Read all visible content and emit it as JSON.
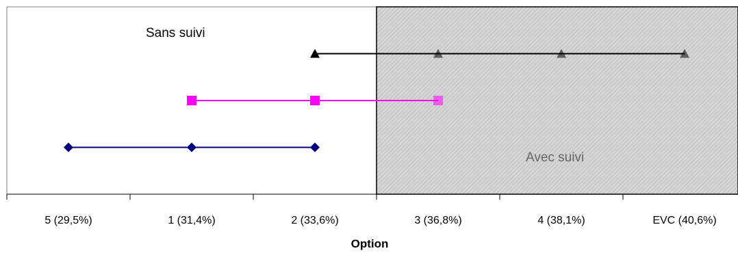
{
  "chart_data": {
    "type": "line",
    "xlabel": "Option",
    "categories": [
      "5 (29,5%)",
      "1 (31,4%)",
      "2 (33,6%)",
      "3 (36,8%)",
      "4 (38,1%)",
      "EVC (40,6%)"
    ],
    "series": [
      {
        "marker": "triangle",
        "color": "#000000",
        "x": [
          "2 (33,6%)",
          "3 (36,8%)",
          "4 (38,1%)",
          "EVC (40,6%)"
        ],
        "y": 3
      },
      {
        "marker": "square",
        "color": "#ff00ff",
        "x": [
          "1 (31,4%)",
          "2 (33,6%)",
          "3 (36,8%)"
        ],
        "y": 2
      },
      {
        "marker": "diamond",
        "color": "#000080",
        "x": [
          "5 (29,5%)",
          "1 (31,4%)",
          "2 (33,6%)"
        ],
        "y": 1
      }
    ],
    "ylim": [
      0,
      4
    ],
    "shaded_region": {
      "from": "3 (36,8%)",
      "to": "EVC (40,6%)",
      "color": "#d4d4d4"
    },
    "annotations": {
      "left": "Sans suivi",
      "right": "Avec suivi"
    },
    "grid": false
  }
}
